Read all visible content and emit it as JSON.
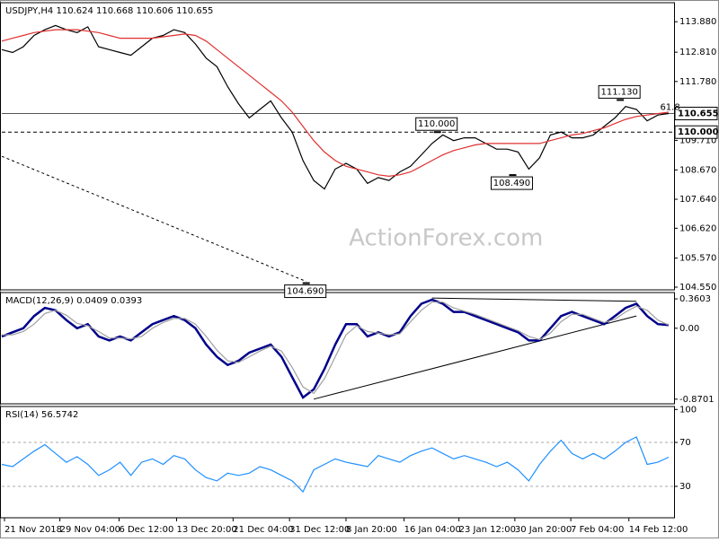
{
  "chart_data": [
    {
      "type": "line",
      "title": "USDJPY,H4  110.624 110.668 110.606 110.655",
      "watermark": "ActionForex.com",
      "fib_label": "61.8",
      "x": [
        0,
        1,
        2,
        3,
        4,
        5,
        6,
        7,
        8,
        9,
        10,
        11,
        12,
        13,
        14,
        15,
        16,
        17,
        18,
        19,
        20,
        21,
        22,
        23,
        24,
        25,
        26,
        27,
        28,
        29,
        30,
        31,
        32,
        33,
        34,
        35,
        36,
        37,
        38,
        39,
        40,
        41,
        42,
        43,
        44,
        45,
        46,
        47,
        48,
        49,
        50,
        51,
        52,
        53,
        54,
        55,
        56,
        57,
        58,
        59,
        60,
        61,
        62
      ],
      "xlim": [
        0,
        62.5
      ],
      "ylim": [
        104.455,
        114.55
      ],
      "yticks": [
        {
          "value": 113.88,
          "label": "113.880"
        },
        {
          "value": 112.81,
          "label": "112.810"
        },
        {
          "value": 111.78,
          "label": "111.780"
        },
        {
          "value": 110.74,
          "label": "110.740"
        },
        {
          "value": 109.71,
          "label": "109.710"
        },
        {
          "value": 108.67,
          "label": "108.670"
        },
        {
          "value": 107.64,
          "label": "107.640"
        },
        {
          "value": 106.62,
          "label": "106.620"
        },
        {
          "value": 105.57,
          "label": "105.570"
        },
        {
          "value": 104.55,
          "label": "104.550"
        }
      ],
      "series": [
        {
          "name": "USDJPY",
          "color": "#000000",
          "values": [
            112.9,
            112.8,
            113.0,
            113.4,
            113.6,
            113.75,
            113.6,
            113.5,
            113.7,
            113.0,
            112.9,
            112.8,
            112.7,
            113.0,
            113.3,
            113.4,
            113.6,
            113.5,
            113.1,
            112.6,
            112.3,
            111.6,
            111.0,
            110.5,
            110.8,
            111.1,
            110.5,
            110.0,
            109.0,
            108.3,
            108.0,
            108.7,
            108.9,
            108.7,
            108.2,
            108.4,
            108.3,
            108.6,
            108.8,
            109.2,
            109.6,
            109.9,
            109.7,
            109.8,
            109.8,
            109.6,
            109.4,
            109.4,
            109.3,
            108.7,
            109.1,
            109.9,
            110.0,
            109.8,
            109.8,
            109.9,
            110.2,
            110.5,
            110.9,
            110.8,
            110.4,
            110.6,
            110.655
          ]
        },
        {
          "name": "MA",
          "color": "#e03030",
          "values": [
            113.2,
            113.3,
            113.4,
            113.5,
            113.55,
            113.6,
            113.6,
            113.6,
            113.55,
            113.5,
            113.4,
            113.3,
            113.3,
            113.3,
            113.3,
            113.35,
            113.4,
            113.45,
            113.4,
            113.2,
            112.9,
            112.6,
            112.3,
            112.0,
            111.7,
            111.4,
            111.1,
            110.7,
            110.2,
            109.7,
            109.3,
            109.0,
            108.8,
            108.7,
            108.6,
            108.5,
            108.45,
            108.5,
            108.6,
            108.8,
            109.0,
            109.2,
            109.35,
            109.45,
            109.55,
            109.6,
            109.6,
            109.6,
            109.6,
            109.6,
            109.6,
            109.7,
            109.8,
            109.9,
            109.95,
            110.05,
            110.15,
            110.3,
            110.45,
            110.55,
            110.6,
            110.65,
            110.7
          ]
        }
      ],
      "hlines": [
        {
          "value": 110.655,
          "label": "110.655"
        },
        {
          "value": 110.0,
          "label": "110.000"
        }
      ],
      "trendlines": [
        {
          "x": [
            0,
            28.3
          ],
          "values": [
            109.15,
            104.75
          ]
        }
      ],
      "annotations": [
        {
          "x": 28.3,
          "value": 104.69,
          "label": "104.690"
        },
        {
          "x": 40.5,
          "value": 110.0,
          "label": "110.000"
        },
        {
          "x": 47.5,
          "value": 108.49,
          "label": "108.490"
        },
        {
          "x": 57.5,
          "value": 111.13,
          "label": "111.130"
        }
      ]
    },
    {
      "type": "line",
      "title": "MACD(12,26,9) 0.0409 0.0393",
      "x": [
        0,
        1,
        2,
        3,
        4,
        5,
        6,
        7,
        8,
        9,
        10,
        11,
        12,
        13,
        14,
        15,
        16,
        17,
        18,
        19,
        20,
        21,
        22,
        23,
        24,
        25,
        26,
        27,
        28,
        29,
        30,
        31,
        32,
        33,
        34,
        35,
        36,
        37,
        38,
        39,
        40,
        41,
        42,
        43,
        44,
        45,
        46,
        47,
        48,
        49,
        50,
        51,
        52,
        53,
        54,
        55,
        56,
        57,
        58,
        59,
        60,
        61,
        62
      ],
      "xlim": [
        0,
        62.5
      ],
      "ylim": [
        -0.927,
        0.438
      ],
      "yticks": [
        0.3603,
        {
          "value": 0,
          "label": "0.00"
        },
        -0.8701
      ],
      "series": [
        {
          "name": "MACD",
          "color": "#00008b",
          "values": [
            -0.1,
            -0.05,
            0.0,
            0.15,
            0.25,
            0.22,
            0.1,
            0.0,
            0.05,
            -0.1,
            -0.15,
            -0.1,
            -0.15,
            -0.05,
            0.05,
            0.1,
            0.15,
            0.1,
            0.0,
            -0.2,
            -0.35,
            -0.45,
            -0.4,
            -0.3,
            -0.25,
            -0.2,
            -0.35,
            -0.6,
            -0.85,
            -0.75,
            -0.5,
            -0.2,
            0.05,
            0.05,
            -0.1,
            -0.05,
            -0.1,
            -0.05,
            0.15,
            0.3,
            0.35,
            0.3,
            0.2,
            0.2,
            0.15,
            0.1,
            0.05,
            0.0,
            -0.05,
            -0.15,
            -0.15,
            0.0,
            0.15,
            0.2,
            0.15,
            0.1,
            0.05,
            0.15,
            0.25,
            0.3,
            0.15,
            0.05,
            0.04
          ]
        },
        {
          "name": "Signal",
          "color": "#a0a0a0",
          "values": [
            -0.08,
            -0.08,
            -0.04,
            0.05,
            0.18,
            0.22,
            0.16,
            0.06,
            0.03,
            -0.04,
            -0.12,
            -0.12,
            -0.13,
            -0.1,
            0.0,
            0.07,
            0.12,
            0.12,
            0.05,
            -0.1,
            -0.27,
            -0.4,
            -0.42,
            -0.35,
            -0.28,
            -0.22,
            -0.28,
            -0.48,
            -0.72,
            -0.8,
            -0.62,
            -0.35,
            -0.08,
            0.03,
            -0.04,
            -0.06,
            -0.08,
            -0.07,
            0.08,
            0.22,
            0.32,
            0.32,
            0.25,
            0.21,
            0.17,
            0.12,
            0.07,
            0.02,
            -0.03,
            -0.1,
            -0.14,
            -0.06,
            0.08,
            0.17,
            0.17,
            0.12,
            0.07,
            0.11,
            0.2,
            0.27,
            0.22,
            0.1,
            0.04
          ]
        }
      ],
      "trendlines": [
        {
          "x": [
            29,
            59
          ],
          "values": [
            -0.87,
            0.15
          ]
        },
        {
          "x": [
            40,
            59
          ],
          "values": [
            0.37,
            0.33
          ]
        }
      ]
    },
    {
      "type": "line",
      "title": "RSI(14) 56.5742",
      "x": [
        0,
        1,
        2,
        3,
        4,
        5,
        6,
        7,
        8,
        9,
        10,
        11,
        12,
        13,
        14,
        15,
        16,
        17,
        18,
        19,
        20,
        21,
        22,
        23,
        24,
        25,
        26,
        27,
        28,
        29,
        30,
        31,
        32,
        33,
        34,
        35,
        36,
        37,
        38,
        39,
        40,
        41,
        42,
        43,
        44,
        45,
        46,
        47,
        48,
        49,
        50,
        51,
        52,
        53,
        54,
        55,
        56,
        57,
        58,
        59,
        60,
        61,
        62
      ],
      "xlim": [
        0,
        62.5
      ],
      "ylim": [
        1.4,
        102.7
      ],
      "yticks": [
        100,
        70,
        30
      ],
      "levels": [
        70,
        30
      ],
      "xticks": [
        {
          "value": 0.25,
          "label": "21 Nov 2018"
        },
        {
          "value": 5.4,
          "label": "29 Nov 04:00"
        },
        {
          "value": 10.9,
          "label": "6 Dec 12:00"
        },
        {
          "value": 16.25,
          "label": "13 Dec 20:00"
        },
        {
          "value": 21.5,
          "label": "21 Dec 04:00"
        },
        {
          "value": 26.75,
          "label": "31 Dec 12:00"
        },
        {
          "value": 32,
          "label": "8 Jan 20:00"
        },
        {
          "value": 37.4,
          "label": "16 Jan 04:00"
        },
        {
          "value": 42.5,
          "label": "23 Jan 12:00"
        },
        {
          "value": 47.7,
          "label": "30 Jan 20:00"
        },
        {
          "value": 52.9,
          "label": "7 Feb 04:00"
        },
        {
          "value": 58.3,
          "label": "14 Feb 12:00"
        }
      ],
      "series": [
        {
          "name": "RSI",
          "color": "#1e90ff",
          "values": [
            50,
            48,
            55,
            62,
            68,
            60,
            52,
            57,
            50,
            40,
            45,
            52,
            40,
            52,
            55,
            50,
            58,
            55,
            45,
            38,
            35,
            42,
            40,
            42,
            48,
            45,
            40,
            35,
            25,
            45,
            50,
            55,
            52,
            50,
            48,
            58,
            55,
            52,
            58,
            62,
            65,
            60,
            55,
            58,
            55,
            52,
            48,
            52,
            45,
            35,
            50,
            62,
            72,
            60,
            55,
            60,
            55,
            62,
            70,
            75,
            50,
            52,
            56.5742
          ]
        }
      ]
    }
  ]
}
